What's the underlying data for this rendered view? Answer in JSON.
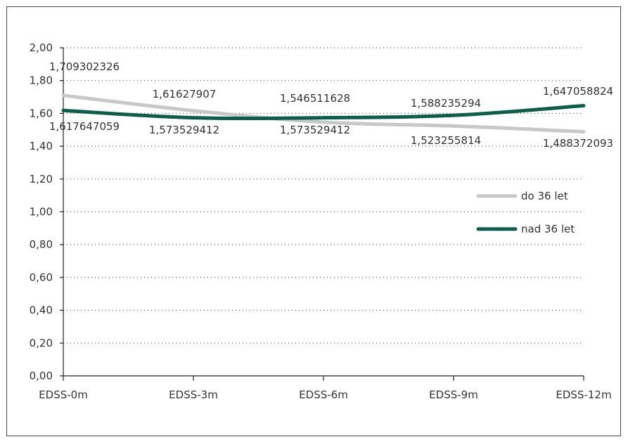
{
  "chart_data": {
    "type": "line",
    "title": "",
    "xlabel": "",
    "ylabel": "",
    "categories": [
      "EDSS-0m",
      "EDSS-3m",
      "EDSS-6m",
      "EDSS-9m",
      "EDSS-12m"
    ],
    "ylim": [
      0,
      2
    ],
    "yticks": [
      "0,00",
      "0,20",
      "0,40",
      "0,60",
      "0,80",
      "1,00",
      "1,20",
      "1,40",
      "1,60",
      "1,80",
      "2,00"
    ],
    "grid": true,
    "legend_position": "right",
    "series": [
      {
        "name": "do 36 let",
        "color": "#c8c8c8",
        "values": [
          1.709302326,
          1.61627907,
          1.546511628,
          1.523255814,
          1.488372093
        ],
        "labels": [
          "1,709302326",
          "1,61627907",
          "1,546511628",
          "1,523255814",
          "1,488372093"
        ]
      },
      {
        "name": "nad 36 let",
        "color": "#0b5e4a",
        "values": [
          1.617647059,
          1.573529412,
          1.573529412,
          1.588235294,
          1.647058824
        ],
        "labels": [
          "1,617647059",
          "1,573529412",
          "1,573529412",
          "1,588235294",
          "1,647058824"
        ]
      }
    ]
  }
}
